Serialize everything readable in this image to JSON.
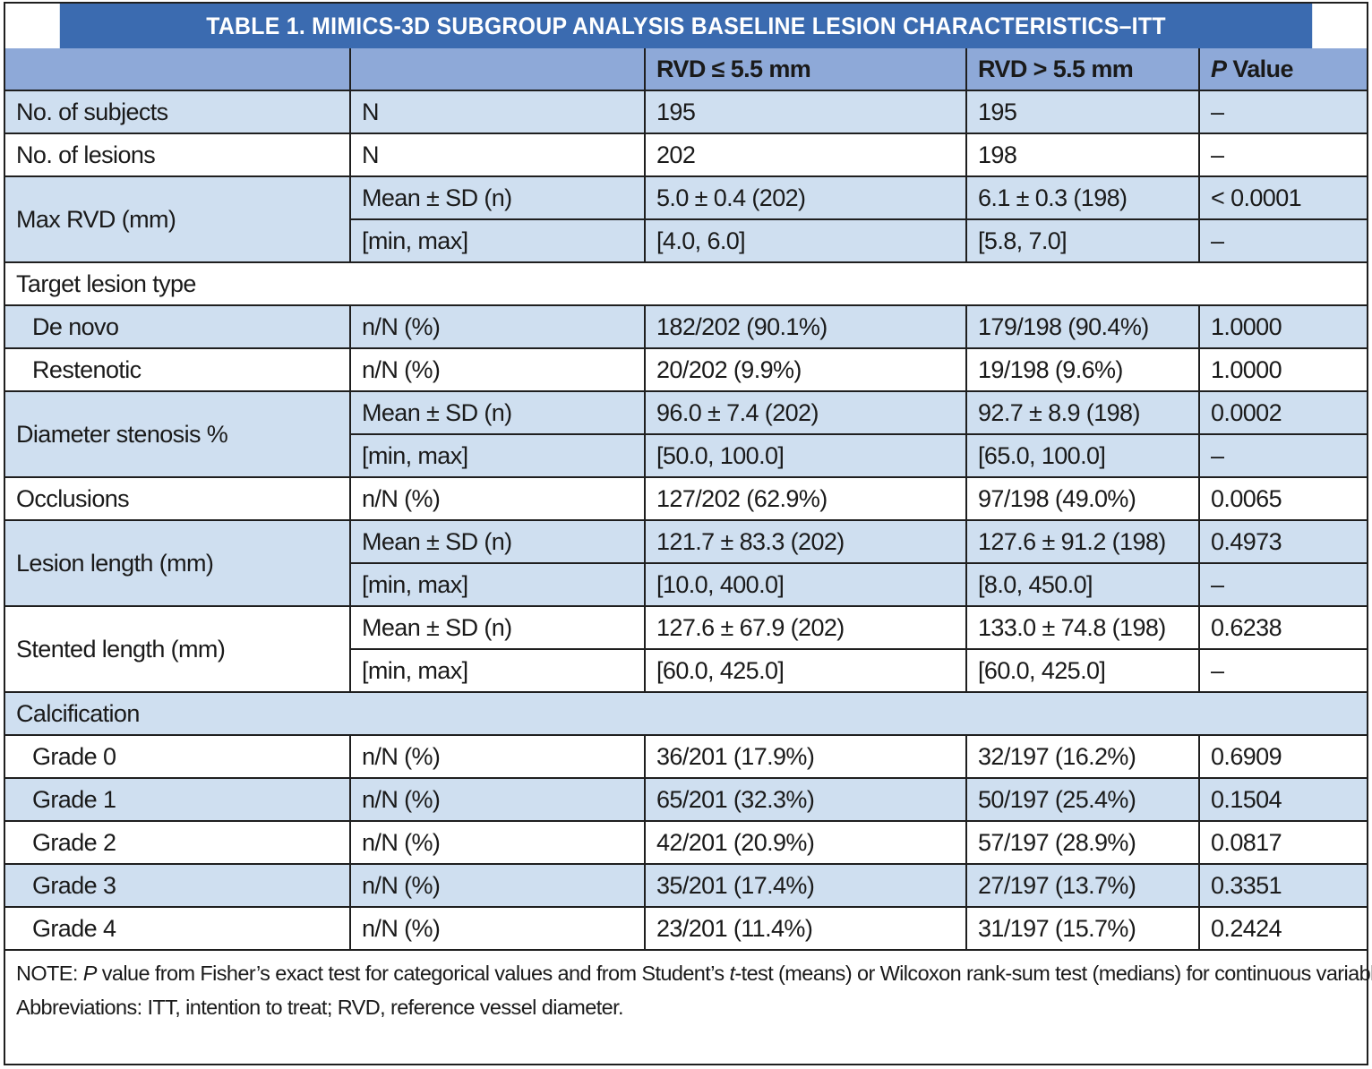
{
  "title": "TABLE 1.  MIMICS-3D SUBGROUP ANALYSIS BASELINE LESION CHARACTERISTICS–ITT",
  "header": {
    "col1": "",
    "col2": "",
    "col3": "RVD ≤ 5.5 mm",
    "col4": "RVD > 5.5 mm",
    "col5_italic": "P",
    "col5_rest": " Value"
  },
  "rows": {
    "subjects": {
      "label": "No. of subjects",
      "stat": "N",
      "a": "195",
      "b": "195",
      "p": "–"
    },
    "lesions": {
      "label": "No. of lesions",
      "stat": "N",
      "a": "202",
      "b": "198",
      "p": "–"
    },
    "maxrvd": {
      "label": "Max RVD (mm)",
      "r1": {
        "stat": "Mean ± SD (n)",
        "a": "5.0 ± 0.4 (202)",
        "b": "6.1 ± 0.3 (198)",
        "p": "< 0.0001"
      },
      "r2": {
        "stat": "[min, max]",
        "a": "[4.0, 6.0]",
        "b": "[5.8, 7.0]",
        "p": "–"
      }
    },
    "target_type": {
      "label": "Target lesion type"
    },
    "denovo": {
      "label": "De novo",
      "stat": "n/N (%)",
      "a": "182/202 (90.1%)",
      "b": "179/198 (90.4%)",
      "p": "1.0000"
    },
    "restenotic": {
      "label": "Restenotic",
      "stat": "n/N (%)",
      "a": "20/202 (9.9%)",
      "b": "19/198 (9.6%)",
      "p": "1.0000"
    },
    "diam": {
      "label": "Diameter stenosis %",
      "r1": {
        "stat": "Mean ± SD (n)",
        "a": "96.0 ± 7.4 (202)",
        "b": "92.7 ± 8.9 (198)",
        "p": "0.0002"
      },
      "r2": {
        "stat": "[min, max]",
        "a": "[50.0, 100.0]",
        "b": "[65.0, 100.0]",
        "p": "–"
      }
    },
    "occl": {
      "label": "Occlusions",
      "stat": "n/N (%)",
      "a": "127/202 (62.9%)",
      "b": "97/198 (49.0%)",
      "p": "0.0065"
    },
    "lesionlen": {
      "label": "Lesion length (mm)",
      "r1": {
        "stat": "Mean ± SD (n)",
        "a": "121.7 ± 83.3 (202)",
        "b": "127.6 ± 91.2 (198)",
        "p": "0.4973"
      },
      "r2": {
        "stat": "[min, max]",
        "a": "[10.0, 400.0]",
        "b": "[8.0, 450.0]",
        "p": "–"
      }
    },
    "stentlen": {
      "label": "Stented length (mm)",
      "r1": {
        "stat": "Mean ± SD (n)",
        "a": "127.6 ± 67.9 (202)",
        "b": "133.0 ± 74.8 (198)",
        "p": "0.6238"
      },
      "r2": {
        "stat": "[min, max]",
        "a": "[60.0, 425.0]",
        "b": "[60.0, 425.0]",
        "p": "–"
      }
    },
    "calc": {
      "label": "Calcification"
    },
    "g0": {
      "label": "Grade 0",
      "stat": "n/N (%)",
      "a": "36/201 (17.9%)",
      "b": "32/197 (16.2%)",
      "p": "0.6909"
    },
    "g1": {
      "label": "Grade 1",
      "stat": "n/N (%)",
      "a": "65/201 (32.3%)",
      "b": "50/197 (25.4%)",
      "p": "0.1504"
    },
    "g2": {
      "label": "Grade 2",
      "stat": "n/N (%)",
      "a": "42/201 (20.9%)",
      "b": "57/197 (28.9%)",
      "p": "0.0817"
    },
    "g3": {
      "label": "Grade 3",
      "stat": "n/N (%)",
      "a": "35/201 (17.4%)",
      "b": "27/197 (13.7%)",
      "p": "0.3351"
    },
    "g4": {
      "label": "Grade 4",
      "stat": "n/N (%)",
      "a": "23/201 (11.4%)",
      "b": "31/197 (15.7%)",
      "p": "0.2424"
    }
  },
  "note": {
    "prefix": "NOTE: ",
    "p_italic": "P",
    "part1": " value from Fisher’s exact test for categorical values and from Student’s ",
    "t_italic": "t",
    "part2": "-test (means) or Wilcoxon rank-sum test (medians) for continuous variables.",
    "abbrev": "Abbreviations: ITT, intention to treat; RVD, reference vessel diameter."
  }
}
